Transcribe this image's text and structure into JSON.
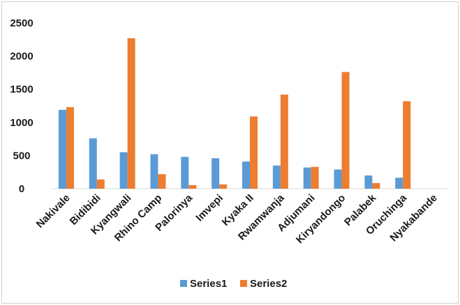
{
  "chart_data": {
    "type": "bar",
    "title": "",
    "xlabel": "",
    "ylabel": "",
    "ylim": [
      0,
      2500
    ],
    "yticks": [
      0,
      500,
      1000,
      1500,
      2000,
      2500
    ],
    "grid": false,
    "legend_position": "bottom",
    "categories": [
      "Nakivale",
      "Bidibidi",
      "Kyangwali",
      "Rhino Camp",
      "Palorinya",
      "Imvepi",
      "Kyaka II",
      "Rwamwanja",
      "Adjumani",
      "Kiryandongo",
      "Palabek",
      "Oruchinga",
      "Nyakabande"
    ],
    "series": [
      {
        "name": "Series1",
        "color": "#5b9bd5",
        "values": [
          1190,
          760,
          550,
          520,
          480,
          460,
          410,
          350,
          320,
          290,
          200,
          165,
          0
        ]
      },
      {
        "name": "Series2",
        "color": "#ed7d31",
        "values": [
          1230,
          140,
          2270,
          220,
          55,
          65,
          1090,
          1420,
          330,
          1760,
          85,
          1320,
          0
        ]
      }
    ]
  }
}
